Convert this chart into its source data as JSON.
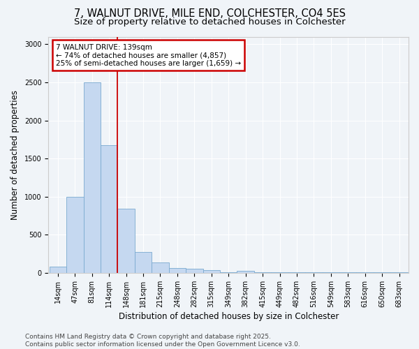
{
  "title_line1": "7, WALNUT DRIVE, MILE END, COLCHESTER, CO4 5ES",
  "title_line2": "Size of property relative to detached houses in Colchester",
  "xlabel": "Distribution of detached houses by size in Colchester",
  "ylabel": "Number of detached properties",
  "categories": [
    "14sqm",
    "47sqm",
    "81sqm",
    "114sqm",
    "148sqm",
    "181sqm",
    "215sqm",
    "248sqm",
    "282sqm",
    "315sqm",
    "349sqm",
    "382sqm",
    "415sqm",
    "449sqm",
    "482sqm",
    "516sqm",
    "549sqm",
    "583sqm",
    "616sqm",
    "650sqm",
    "683sqm"
  ],
  "values": [
    80,
    1000,
    2500,
    1680,
    840,
    270,
    140,
    60,
    50,
    40,
    5,
    30,
    5,
    5,
    5,
    5,
    5,
    5,
    5,
    5,
    5
  ],
  "bar_color": "#c5d8f0",
  "bar_edge_color": "#7aaad0",
  "vline_x": 3.5,
  "annotation_title": "7 WALNUT DRIVE: 139sqm",
  "annotation_line1": "← 74% of detached houses are smaller (4,857)",
  "annotation_line2": "25% of semi-detached houses are larger (1,659) →",
  "annotation_box_facecolor": "#ffffff",
  "annotation_box_edgecolor": "#cc0000",
  "vline_color": "#cc0000",
  "ylim": [
    0,
    3100
  ],
  "yticks": [
    0,
    500,
    1000,
    1500,
    2000,
    2500,
    3000
  ],
  "footnote_line1": "Contains HM Land Registry data © Crown copyright and database right 2025.",
  "footnote_line2": "Contains public sector information licensed under the Open Government Licence v3.0.",
  "bg_color": "#f0f4f8",
  "plot_bg_color": "#f0f4f8",
  "title_fontsize": 10.5,
  "subtitle_fontsize": 9.5,
  "tick_fontsize": 7,
  "label_fontsize": 8.5,
  "annotation_fontsize": 7.5,
  "footnote_fontsize": 6.5,
  "grid_color": "#ffffff",
  "spine_color": "#cccccc"
}
